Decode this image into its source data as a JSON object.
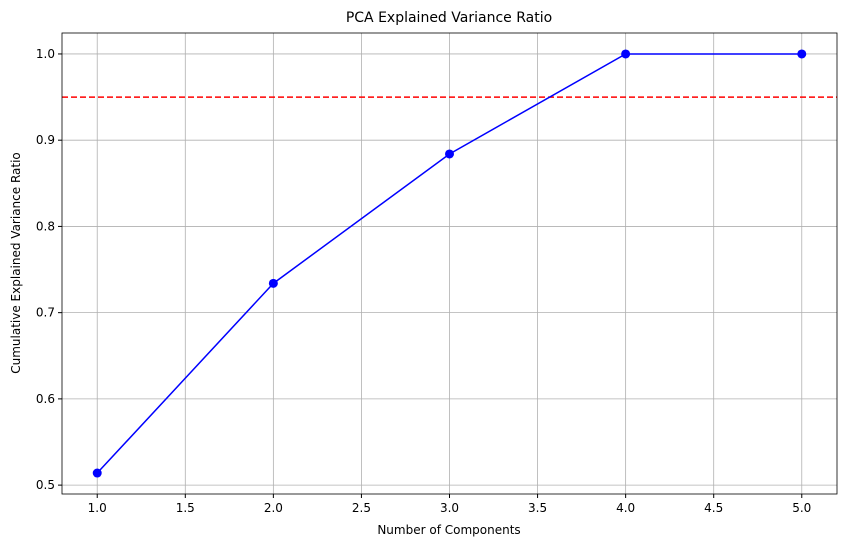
{
  "chart_data": {
    "type": "line",
    "title": "PCA Explained Variance Ratio",
    "x_label": "Number of Components",
    "y_label": "Cumulative Explained Variance Ratio",
    "x": [
      1,
      2,
      3,
      4,
      5
    ],
    "series": [
      {
        "color": "#0000ff",
        "marker": "circle",
        "values": [
          0.514,
          0.734,
          0.884,
          1.0,
          1.0
        ]
      }
    ],
    "hlines": [
      {
        "value": 0.95,
        "color": "#ff0000",
        "style": "dashed"
      }
    ],
    "xlim": [
      0.8,
      5.2
    ],
    "xticks": [
      {
        "value": 1,
        "label": "1.0"
      },
      1.5,
      {
        "value": 2,
        "label": "2.0"
      },
      2.5,
      {
        "value": 3,
        "label": "3.0"
      },
      3.5,
      {
        "value": 4,
        "label": "4.0"
      },
      4.5,
      {
        "value": 5,
        "label": "5.0"
      }
    ],
    "ylim": [
      0.4897,
      1.0243
    ],
    "yticks": [
      0.5,
      0.6,
      0.7,
      0.8,
      0.9,
      {
        "value": 1,
        "label": "1.0"
      }
    ],
    "grid": true
  }
}
